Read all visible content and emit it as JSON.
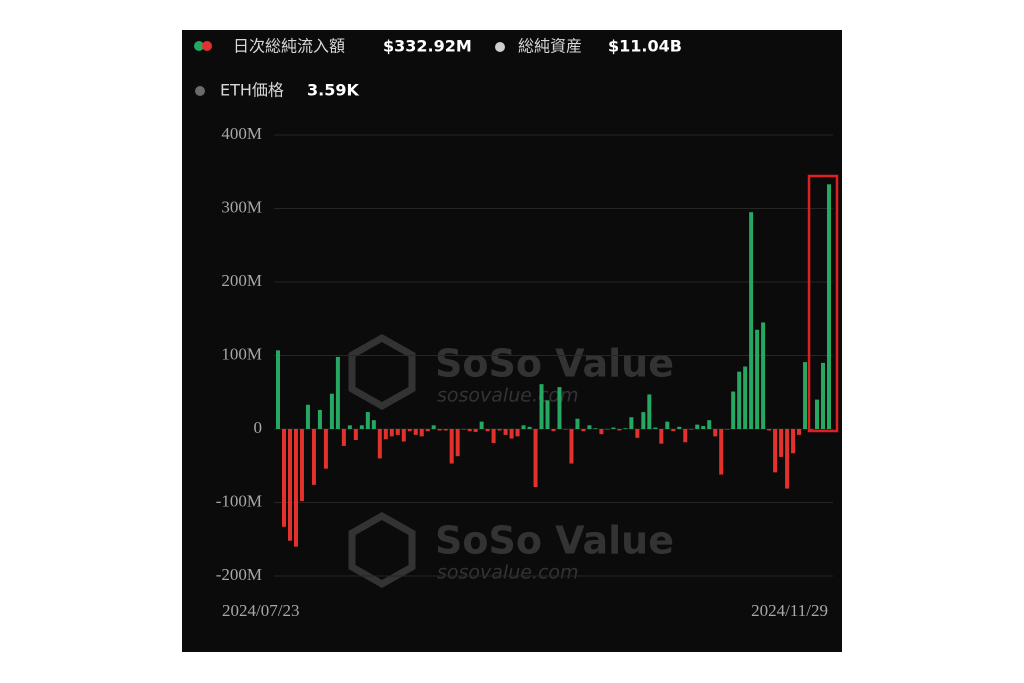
{
  "chart_data": {
    "type": "bar",
    "legend_items": [
      {
        "label": "日次総純流入額",
        "value": "$332.92M"
      },
      {
        "label": "総純資産",
        "value": "$11.04B"
      },
      {
        "label": "ETH価格",
        "value": "3.59K"
      }
    ],
    "watermark": {
      "brand": "SoSo Value",
      "url": "sosovalue.com"
    },
    "categories": [
      "2024/07/23",
      null,
      null,
      null,
      null,
      null,
      null,
      null,
      null,
      null,
      null,
      null,
      null,
      null,
      null,
      null,
      null,
      null,
      null,
      null,
      null,
      null,
      null,
      null,
      null,
      null,
      null,
      null,
      null,
      null,
      null,
      null,
      null,
      null,
      null,
      null,
      null,
      null,
      null,
      null,
      null,
      null,
      null,
      null,
      null,
      null,
      null,
      null,
      null,
      null,
      null,
      null,
      null,
      null,
      null,
      null,
      null,
      null,
      null,
      null,
      null,
      null,
      null,
      null,
      null,
      null,
      null,
      null,
      null,
      null,
      null,
      null,
      null,
      null,
      null,
      null,
      null,
      null,
      null,
      null,
      null,
      null,
      null,
      null,
      null,
      null,
      null,
      null,
      null,
      null,
      null,
      null,
      "2024/11/29"
    ],
    "series": [
      {
        "values": [
          107,
          -133,
          -152,
          -160,
          -98,
          33,
          -76,
          26,
          -54,
          48,
          98,
          -23,
          5,
          -15,
          5,
          23,
          12,
          -40,
          -14,
          -10,
          -8,
          -17,
          -3,
          -8,
          -10,
          -3,
          5,
          -2,
          -2,
          -47,
          -37,
          0,
          -3,
          -4,
          10,
          -3,
          -19,
          -2,
          -8,
          -13,
          -10,
          5,
          3,
          -79,
          61,
          39,
          -3,
          57,
          0,
          -47,
          14,
          -3,
          5,
          1,
          -7,
          0,
          2,
          -2,
          1,
          16,
          -12,
          23,
          47,
          2,
          -20,
          10,
          -3,
          3,
          -18,
          0,
          6,
          4,
          12,
          -10,
          -62,
          0,
          51,
          78,
          85,
          295,
          135,
          145,
          -2,
          -59,
          -38,
          -81,
          -33,
          -8,
          91,
          0,
          40,
          90,
          332.92
        ]
      }
    ],
    "colors": {
      "positive": "#27a862",
      "negative": "#e3322b"
    },
    "ylim": [
      -200,
      400
    ],
    "yticks": [
      {
        "value": -200,
        "label": "-200M"
      },
      {
        "value": -100,
        "label": "-100M"
      },
      0,
      {
        "value": 100,
        "label": "100M"
      },
      {
        "value": 200,
        "label": "200M"
      },
      {
        "value": 300,
        "label": "300M"
      },
      {
        "value": 400,
        "label": "400M"
      }
    ],
    "grid": true
  }
}
